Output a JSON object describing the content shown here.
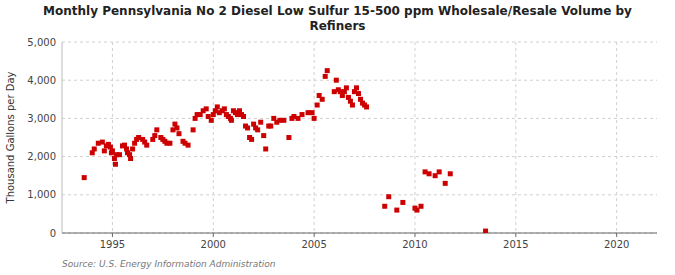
{
  "chart_data": {
    "type": "scatter",
    "title": "Monthly Pennsylvania No 2 Diesel Low Sulfur 15-500 ppm Wholesale/Resale Volume by\nRefiners",
    "ylabel": "Thousand Gallons per Day",
    "source": "Source: U.S. Energy Information Administration",
    "color": "#cc0000",
    "marker": "square",
    "grid": true,
    "xlim": [
      1992.5,
      2022
    ],
    "ylim": [
      0,
      5000
    ],
    "xticks": [
      1995,
      2000,
      2005,
      2010,
      2015,
      2020
    ],
    "yticks": [
      0,
      {
        "value": 1000,
        "label": "1,000"
      },
      {
        "value": 2000,
        "label": "2,000"
      },
      {
        "value": 3000,
        "label": "3,000"
      },
      {
        "value": 4000,
        "label": "4,000"
      },
      {
        "value": 5000,
        "label": "5,000"
      }
    ],
    "x": [
      1993.6,
      1994.0,
      1994.1,
      1994.3,
      1994.5,
      1994.6,
      1994.7,
      1994.8,
      1994.9,
      1994.95,
      1995.0,
      1995.1,
      1995.15,
      1995.2,
      1995.35,
      1995.5,
      1995.6,
      1995.7,
      1995.75,
      1995.85,
      1995.9,
      1996.0,
      1996.1,
      1996.2,
      1996.3,
      1996.5,
      1996.6,
      1996.7,
      1997.0,
      1997.1,
      1997.2,
      1997.4,
      1997.5,
      1997.6,
      1997.7,
      1997.85,
      1998.0,
      1998.1,
      1998.2,
      1998.3,
      1998.5,
      1998.6,
      1998.75,
      1999.0,
      1999.1,
      1999.2,
      1999.35,
      1999.5,
      1999.65,
      1999.75,
      1999.9,
      2000.0,
      2000.1,
      2000.2,
      2000.3,
      2000.45,
      2000.55,
      2000.65,
      2000.75,
      2000.85,
      2000.9,
      2001.0,
      2001.1,
      2001.2,
      2001.3,
      2001.4,
      2001.5,
      2001.6,
      2001.7,
      2001.8,
      2001.9,
      2002.0,
      2002.1,
      2002.2,
      2002.35,
      2002.5,
      2002.6,
      2002.75,
      2002.85,
      2003.0,
      2003.15,
      2003.3,
      2003.5,
      2003.75,
      2003.9,
      2004.0,
      2004.2,
      2004.4,
      2004.7,
      2004.9,
      2005.0,
      2005.15,
      2005.25,
      2005.4,
      2005.55,
      2005.65,
      2006.0,
      2006.1,
      2006.2,
      2006.3,
      2006.4,
      2006.5,
      2006.6,
      2006.7,
      2006.8,
      2006.9,
      2007.0,
      2007.1,
      2007.2,
      2007.3,
      2007.4,
      2007.5,
      2007.6,
      2008.5,
      2008.7,
      2009.1,
      2009.4,
      2010.0,
      2010.1,
      2010.3,
      2010.5,
      2010.7,
      2011.0,
      2011.2,
      2011.5,
      2011.75,
      2013.5
    ],
    "values": [
      1450,
      2100,
      2200,
      2350,
      2380,
      2150,
      2280,
      2320,
      2250,
      2100,
      2150,
      1950,
      1800,
      2050,
      2050,
      2280,
      2300,
      2200,
      2100,
      2050,
      1950,
      2200,
      2350,
      2450,
      2500,
      2450,
      2380,
      2300,
      2450,
      2550,
      2700,
      2500,
      2450,
      2400,
      2350,
      2350,
      2700,
      2850,
      2750,
      2600,
      2400,
      2350,
      2300,
      2700,
      3000,
      3100,
      3100,
      3200,
      3250,
      3050,
      2950,
      3100,
      3200,
      3300,
      3150,
      3200,
      3250,
      3100,
      3050,
      3000,
      2950,
      3200,
      3150,
      3100,
      3200,
      3100,
      3050,
      2800,
      2750,
      2500,
      2450,
      2850,
      2750,
      2700,
      2900,
      2550,
      2200,
      2800,
      2800,
      3000,
      2900,
      2950,
      2950,
      2500,
      3000,
      3050,
      3000,
      3100,
      3150,
      3150,
      3000,
      3350,
      3600,
      3500,
      4100,
      4250,
      3700,
      4000,
      3750,
      3700,
      3600,
      3700,
      3800,
      3550,
      3450,
      3350,
      3700,
      3800,
      3650,
      3500,
      3400,
      3350,
      3300,
      700,
      950,
      600,
      800,
      650,
      600,
      700,
      1600,
      1550,
      1500,
      1600,
      1300,
      1550,
      50
    ]
  }
}
